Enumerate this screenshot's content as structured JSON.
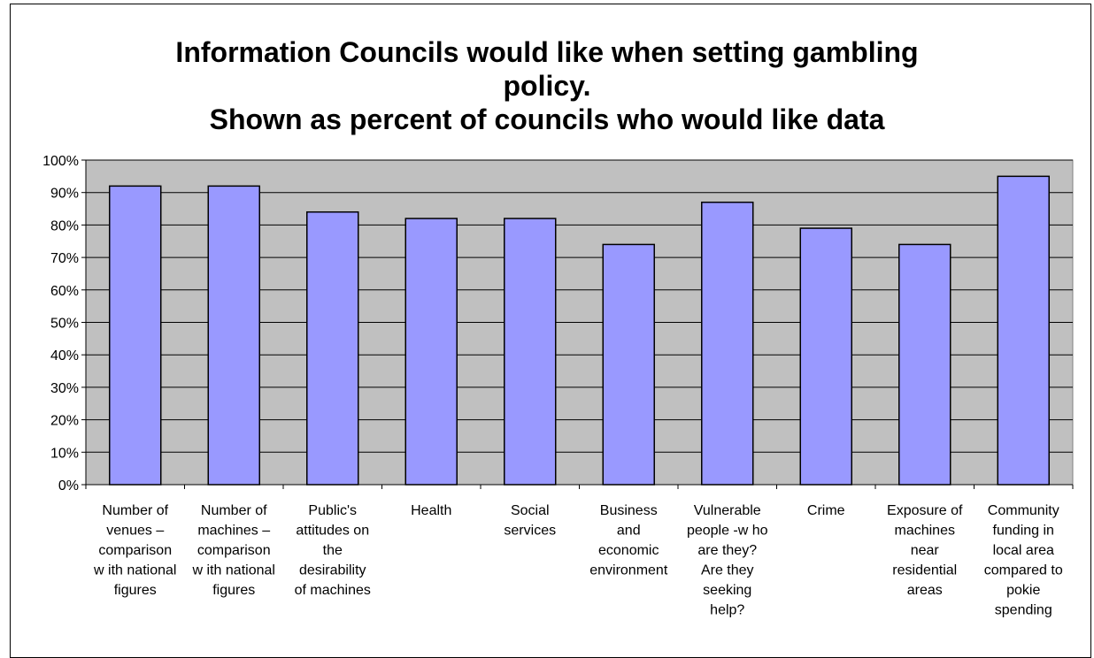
{
  "chart_data": {
    "type": "bar",
    "title_lines": [
      "Information Councils would like when setting gambling",
      "policy.",
      "Shown as percent of councils who would like data"
    ],
    "categories": [
      [
        "Number of",
        "venues –",
        "comparison",
        "w ith national",
        "figures"
      ],
      [
        "Number of",
        "machines –",
        "comparison",
        "w ith national",
        "figures"
      ],
      [
        "Public's",
        "attitudes on",
        "the",
        "desirability",
        "of machines"
      ],
      [
        "Health"
      ],
      [
        "Social",
        "services"
      ],
      [
        "Business",
        "and",
        "economic",
        "environment"
      ],
      [
        "Vulnerable",
        "people -w ho",
        "are they?",
        "Are they",
        "seeking",
        "help?"
      ],
      [
        "Crime"
      ],
      [
        "Exposure of",
        "machines",
        "near",
        "residential",
        "areas"
      ],
      [
        "Community",
        "funding in",
        "local area",
        "compared to",
        "pokie",
        "spending"
      ]
    ],
    "values": [
      92,
      92,
      84,
      82,
      82,
      74,
      87,
      79,
      74,
      95
    ],
    "ylim": [
      0,
      100
    ],
    "yticks": [
      "0%",
      "10%",
      "20%",
      "30%",
      "40%",
      "50%",
      "60%",
      "70%",
      "80%",
      "90%",
      "100%"
    ],
    "xlabel": "",
    "ylabel": "",
    "grid": true,
    "colors": {
      "bar_fill": "#9999FF",
      "plot_background": "#C0C0C0",
      "gridline": "#000000"
    }
  }
}
